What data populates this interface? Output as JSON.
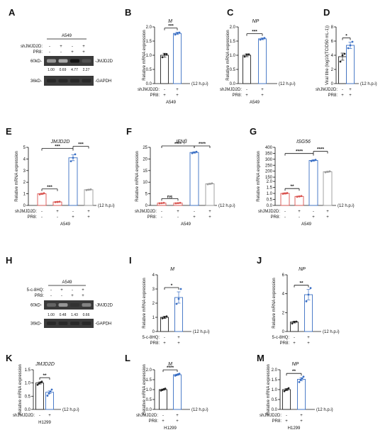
{
  "hpi_label": "(12 h.p.i)",
  "panels": [
    {
      "letter": "A"
    },
    {
      "letter": "B"
    },
    {
      "letter": "C"
    },
    {
      "letter": "D"
    },
    {
      "letter": "E"
    },
    {
      "letter": "F"
    },
    {
      "letter": "G"
    },
    {
      "letter": "H"
    },
    {
      "letter": "I"
    },
    {
      "letter": "J"
    },
    {
      "letter": "K"
    },
    {
      "letter": "L"
    },
    {
      "letter": "M"
    }
  ],
  "blots": [
    {
      "cell": "A549",
      "rows": [
        {
          "name": "shJMJD2D:",
          "signs": [
            "-",
            "+",
            "-",
            "+"
          ]
        },
        {
          "name": "PR8:",
          "signs": [
            "-",
            "-",
            "+",
            "+"
          ]
        }
      ],
      "bands": [
        {
          "size": "60kD-",
          "protein": "-JMJD2D"
        },
        {
          "size": "36kD-",
          "protein": "-GAPDH"
        }
      ],
      "quant": [
        "1.00",
        "0.69",
        "4.77",
        "2.27"
      ],
      "intensity": [
        0.35,
        0.25,
        1.0,
        0.7
      ]
    },
    {
      "cell": "A549",
      "rows": [
        {
          "name": "5-c-8HQ:",
          "signs": [
            "-",
            "+",
            "-",
            "+"
          ]
        },
        {
          "name": "PR8:",
          "signs": [
            "-",
            "-",
            "+",
            "+"
          ]
        }
      ],
      "bands": [
        {
          "size": "60kD-",
          "protein": "-JMJD2D"
        },
        {
          "size": "36kD-",
          "protein": "-GAPDH"
        }
      ],
      "quant": [
        "1.00",
        "0.48",
        "1.43",
        "0.66"
      ],
      "intensity": [
        0.6,
        0.35,
        0.85,
        0.45
      ]
    }
  ],
  "chart_data": [
    {
      "panel": "B",
      "type": "bar",
      "title": "M",
      "ylabel": "Relative mRNA expression",
      "ylim": [
        0,
        2.0
      ],
      "yticks": [
        "0.0",
        "0.5",
        "1.0",
        "1.5",
        "2.0"
      ],
      "yticks_num": [
        0,
        0.5,
        1,
        1.5,
        2
      ],
      "rows": [
        {
          "name": "shJMJD2D:",
          "signs": [
            "-",
            "+"
          ]
        },
        {
          "name": "PR8:",
          "signs": [
            "+",
            "+"
          ]
        }
      ],
      "group": "A549",
      "values": [
        1.0,
        1.77
      ],
      "errors": [
        0.07,
        0.04
      ],
      "points": [
        [
          0.93,
          1.03,
          1.04
        ],
        [
          1.73,
          1.78,
          1.8
        ]
      ],
      "sig": [
        {
          "a": 0,
          "b": 1,
          "label": "***"
        }
      ],
      "colors": [
        "#222222",
        "#3a6fc4"
      ]
    },
    {
      "panel": "C",
      "type": "bar",
      "title": "NP",
      "ylabel": "Relative mRNA expression",
      "ylim": [
        0,
        2.0
      ],
      "yticks": [
        "0.0",
        "0.5",
        "1.0",
        "1.5",
        "2.0"
      ],
      "yticks_num": [
        0,
        0.5,
        1,
        1.5,
        2
      ],
      "rows": [
        {
          "name": "shJMJD2D:",
          "signs": [
            "-",
            "+"
          ]
        },
        {
          "name": "PR8:",
          "signs": [
            "+",
            "+"
          ]
        }
      ],
      "group": "A549",
      "values": [
        1.0,
        1.58
      ],
      "errors": [
        0.05,
        0.03
      ],
      "points": [
        [
          0.95,
          1.02,
          1.03
        ],
        [
          1.55,
          1.58,
          1.61
        ]
      ],
      "sig": [
        {
          "a": 0,
          "b": 1,
          "label": "***"
        }
      ],
      "colors": [
        "#222222",
        "#3a6fc4"
      ]
    },
    {
      "panel": "D",
      "type": "bar",
      "title": "",
      "ylabel": "Viral titre (log10(TCID50 mL-1))",
      "ylim": [
        0,
        8
      ],
      "yticks": [
        "0",
        "2",
        "4",
        "6",
        "8"
      ],
      "yticks_num": [
        0,
        2,
        4,
        6,
        8
      ],
      "rows": [
        {
          "name": "shJMJD2D:",
          "signs": [
            "-",
            "+"
          ]
        },
        {
          "name": "PR8:",
          "signs": [
            "+",
            "+"
          ]
        }
      ],
      "group": "",
      "values": [
        3.8,
        5.4
      ],
      "errors": [
        0.5,
        0.45
      ],
      "points": [
        [
          3.1,
          4.0,
          4.2
        ],
        [
          5.0,
          5.4,
          5.9
        ]
      ],
      "sig": [
        {
          "a": 0,
          "b": 1,
          "label": "*"
        }
      ],
      "colors": [
        "#222222",
        "#3a6fc4"
      ]
    },
    {
      "panel": "E",
      "type": "bar",
      "title": "JMJD2D",
      "ylabel": "Relative mRNA expression",
      "ylim": [
        0,
        5
      ],
      "yticks": [
        "0",
        "1",
        "2",
        "3",
        "4",
        "5"
      ],
      "yticks_num": [
        0,
        1,
        2,
        3,
        4,
        5
      ],
      "rows": [
        {
          "name": "shJMJD2D:",
          "signs": [
            "-",
            "+",
            "-",
            "+"
          ]
        },
        {
          "name": "PR8:",
          "signs": [
            "-",
            "-",
            "+",
            "+"
          ]
        }
      ],
      "group": "A549",
      "values": [
        1.0,
        0.3,
        4.1,
        1.35
      ],
      "errors": [
        0.05,
        0.03,
        0.25,
        0.04
      ],
      "points": [
        [
          0.95,
          1.0,
          1.05
        ],
        [
          0.28,
          0.3,
          0.32
        ],
        [
          3.8,
          4.1,
          4.4
        ],
        [
          1.32,
          1.35,
          1.38
        ]
      ],
      "sig": [
        {
          "a": 0,
          "b": 1,
          "label": "***"
        },
        {
          "a": 0,
          "b": 2,
          "label": "***"
        },
        {
          "a": 2,
          "b": 3,
          "label": "***"
        }
      ],
      "colors": [
        "#d9534f",
        "#d9534f",
        "#3a6fc4",
        "#999999"
      ]
    },
    {
      "panel": "F",
      "type": "bar",
      "title": "IFNβ",
      "ylabel": "Relative mRNA expression",
      "ylim": [
        0,
        25
      ],
      "yticks": [
        "0",
        "5",
        "10",
        "15",
        "20",
        "25"
      ],
      "yticks_num": [
        0,
        5,
        10,
        15,
        20,
        25
      ],
      "rows": [
        {
          "name": "shJMJD2D:",
          "signs": [
            "-",
            "+",
            "-",
            "+"
          ]
        },
        {
          "name": "PR8:",
          "signs": [
            "-",
            "-",
            "+",
            "+"
          ]
        }
      ],
      "group": "A549",
      "values": [
        1.0,
        1.0,
        22.8,
        9.3
      ],
      "errors": [
        0.1,
        0.1,
        0.3,
        0.2
      ],
      "points": [
        [
          0.9,
          1.0,
          1.1
        ],
        [
          0.9,
          1.0,
          1.1
        ],
        [
          22.5,
          22.8,
          23.1
        ],
        [
          9.1,
          9.3,
          9.5
        ]
      ],
      "sig": [
        {
          "a": 0,
          "b": 1,
          "label": "ns"
        },
        {
          "a": 0,
          "b": 2,
          "label": "****"
        },
        {
          "a": 2,
          "b": 3,
          "label": "****"
        }
      ],
      "colors": [
        "#d9534f",
        "#d9534f",
        "#3a6fc4",
        "#999999"
      ]
    },
    {
      "panel": "G",
      "type": "bar",
      "title": "ISG56",
      "ylabel": "Relative mRNA expression",
      "ylim": [
        0,
        400
      ],
      "yticks": [
        "0.0",
        "0.5",
        "1.0",
        "1.5",
        "2.0",
        "150",
        "200",
        "250",
        "300",
        "350",
        "400"
      ],
      "yticks_num": [
        0,
        0.5,
        1,
        1.5,
        2,
        150,
        200,
        250,
        300,
        350,
        400
      ],
      "axis_break": {
        "low": [
          0,
          2.0
        ],
        "high": [
          150,
          400
        ]
      },
      "rows": [
        {
          "name": "shJMJD2D:",
          "signs": [
            "-",
            "+",
            "-",
            "+"
          ]
        },
        {
          "name": "PR8:",
          "signs": [
            "-",
            "-",
            "+",
            "+"
          ]
        }
      ],
      "group": "A549",
      "values": [
        1.0,
        0.75,
        290,
        195
      ],
      "errors": [
        0.05,
        0.03,
        5,
        4
      ],
      "points": [
        [
          0.97,
          1.0,
          1.03
        ],
        [
          0.72,
          0.75,
          0.78
        ],
        [
          285,
          290,
          295
        ],
        [
          191,
          195,
          199
        ]
      ],
      "sig": [
        {
          "a": 0,
          "b": 1,
          "label": "**"
        },
        {
          "a": 0,
          "b": 2,
          "label": "****"
        },
        {
          "a": 2,
          "b": 3,
          "label": "****"
        }
      ],
      "colors": [
        "#d9534f",
        "#d9534f",
        "#3a6fc4",
        "#999999"
      ]
    },
    {
      "panel": "I",
      "type": "bar",
      "title": "M",
      "ylabel": "Relative mRNA expression",
      "ylim": [
        0,
        4
      ],
      "yticks": [
        "0",
        "1",
        "2",
        "3",
        "4"
      ],
      "yticks_num": [
        0,
        1,
        2,
        3,
        4
      ],
      "rows": [
        {
          "name": "5-c-8HQ:",
          "signs": [
            "-",
            "+"
          ]
        },
        {
          "name": "PR8:",
          "signs": [
            "+",
            "+"
          ]
        }
      ],
      "group": "",
      "values": [
        1.0,
        2.4
      ],
      "errors": [
        0.08,
        0.4
      ],
      "points": [
        [
          0.93,
          1.0,
          1.07
        ],
        [
          1.95,
          2.3,
          3.0
        ]
      ],
      "sig": [
        {
          "a": 0,
          "b": 1,
          "label": "*"
        }
      ],
      "colors": [
        "#222222",
        "#3a6fc4"
      ]
    },
    {
      "panel": "J",
      "type": "bar",
      "title": "NP",
      "ylabel": "Relative mRNA expression",
      "ylim": [
        0,
        6
      ],
      "yticks": [
        "0",
        "2",
        "4",
        "6"
      ],
      "yticks_num": [
        0,
        2,
        4,
        6
      ],
      "rows": [
        {
          "name": "5-c-8HQ:",
          "signs": [
            "-",
            "+"
          ]
        },
        {
          "name": "PR8:",
          "signs": [
            "+",
            "+"
          ]
        }
      ],
      "group": "",
      "values": [
        1.0,
        3.9
      ],
      "errors": [
        0.1,
        0.55
      ],
      "points": [
        [
          0.85,
          1.0,
          1.05
        ],
        [
          3.2,
          3.9,
          4.6
        ]
      ],
      "sig": [
        {
          "a": 0,
          "b": 1,
          "label": "**"
        }
      ],
      "colors": [
        "#222222",
        "#3a6fc4"
      ]
    },
    {
      "panel": "K",
      "type": "bar",
      "title": "JMJD2D",
      "ylabel": "Relative mRNA expression",
      "ylim": [
        0,
        1.5
      ],
      "yticks": [
        "0.0",
        "0.5",
        "1.0",
        "1.5"
      ],
      "yticks_num": [
        0,
        0.5,
        1,
        1.5
      ],
      "rows": [
        {
          "name": "shJMJD2D:",
          "signs": [
            "-",
            "+"
          ]
        }
      ],
      "group": "H1299",
      "values": [
        1.0,
        0.65
      ],
      "errors": [
        0.04,
        0.05
      ],
      "points": [
        [
          0.93,
          0.98,
          1.02,
          1.05
        ],
        [
          0.52,
          0.6,
          0.68,
          0.75
        ]
      ],
      "sig": [
        {
          "a": 0,
          "b": 1,
          "label": "**"
        }
      ],
      "colors": [
        "#222222",
        "#3a6fc4"
      ]
    },
    {
      "panel": "L",
      "type": "bar",
      "title": "M",
      "ylabel": "Relative mRNA expression",
      "ylim": [
        0,
        2.0
      ],
      "yticks": [
        "0.0",
        "0.5",
        "1.0",
        "1.5",
        "2.0"
      ],
      "yticks_num": [
        0,
        0.5,
        1,
        1.5,
        2
      ],
      "rows": [
        {
          "name": "shJMJD2D:",
          "signs": [
            "-",
            "+"
          ]
        },
        {
          "name": "PR8:",
          "signs": [
            "+",
            "+"
          ]
        }
      ],
      "group": "H1299",
      "values": [
        1.0,
        1.75
      ],
      "errors": [
        0.03,
        0.03
      ],
      "points": [
        [
          0.95,
          0.98,
          1.02,
          1.05
        ],
        [
          1.7,
          1.73,
          1.77,
          1.8
        ]
      ],
      "sig": [
        {
          "a": 0,
          "b": 1,
          "label": "****"
        }
      ],
      "colors": [
        "#222222",
        "#3a6fc4"
      ]
    },
    {
      "panel": "M",
      "type": "bar",
      "title": "NP",
      "ylabel": "Relative mRNA expression",
      "ylim": [
        0,
        2.0
      ],
      "yticks": [
        "0.0",
        "0.5",
        "1.0",
        "1.5",
        "2.0"
      ],
      "yticks_num": [
        0,
        0.5,
        1,
        1.5,
        2
      ],
      "rows": [
        {
          "name": "shJMJD2D:",
          "signs": [
            "-",
            "+"
          ]
        },
        {
          "name": "PR8:",
          "signs": [
            "+",
            "+"
          ]
        }
      ],
      "group": "H1299",
      "values": [
        1.0,
        1.52
      ],
      "errors": [
        0.05,
        0.08
      ],
      "points": [
        [
          0.92,
          0.98,
          1.02,
          1.07
        ],
        [
          1.38,
          1.5,
          1.56,
          1.65
        ]
      ],
      "sig": [
        {
          "a": 0,
          "b": 1,
          "label": "**"
        }
      ],
      "colors": [
        "#222222",
        "#3a6fc4"
      ]
    }
  ]
}
